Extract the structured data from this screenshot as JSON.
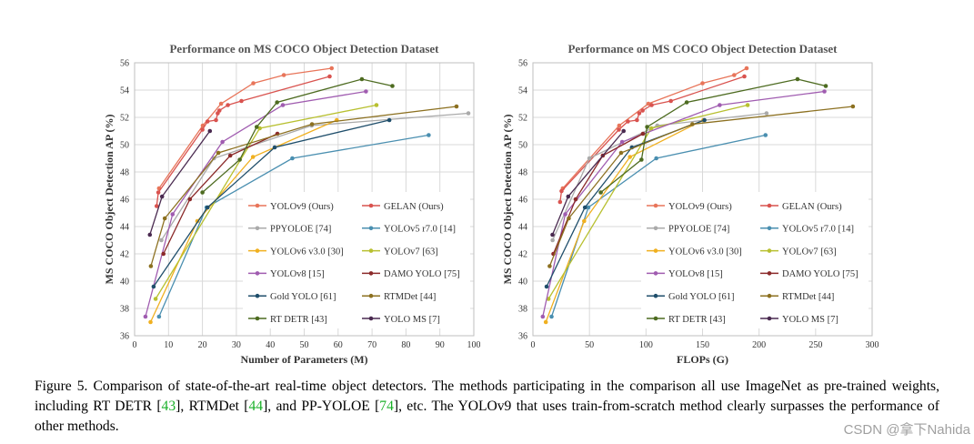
{
  "chart_data": [
    {
      "type": "line",
      "title": "Performance on MS COCO Object Detection Dataset",
      "xlabel": "Number of Parameters (M)",
      "ylabel": "MS COCO Object Detection AP (%)",
      "xlim": [
        0,
        100
      ],
      "ylim": [
        36,
        56
      ],
      "xticks": [
        0,
        10,
        20,
        30,
        40,
        50,
        60,
        70,
        80,
        90,
        100
      ],
      "yticks": [
        36,
        38,
        40,
        42,
        44,
        46,
        48,
        50,
        52,
        54,
        56
      ],
      "grid": true,
      "legend": "bottom-right",
      "series": [
        {
          "name": "YOLOv9 (Ours)",
          "color": "#e8755a",
          "points": [
            [
              7.2,
              46.8
            ],
            [
              20.1,
              51.4
            ],
            [
              25.5,
              53.0
            ],
            [
              35.0,
              54.5
            ],
            [
              44.0,
              55.1
            ],
            [
              58.1,
              55.6
            ]
          ]
        },
        {
          "name": "GELAN (Ours)",
          "color": "#d9534f",
          "points": [
            [
              6.5,
              45.5
            ],
            [
              7.0,
              46.5
            ],
            [
              20.0,
              51.1
            ],
            [
              21.5,
              51.7
            ],
            [
              24.0,
              51.8
            ],
            [
              24.5,
              52.3
            ],
            [
              25.0,
              52.5
            ],
            [
              27.5,
              52.9
            ],
            [
              31.5,
              53.2
            ],
            [
              57.5,
              55.0
            ]
          ]
        },
        {
          "name": "PPYOLOE [74]",
          "color": "#aaaaaa",
          "points": [
            [
              7.9,
              43.0
            ],
            [
              23.4,
              49.0
            ],
            [
              52.2,
              51.4
            ],
            [
              98.4,
              52.3
            ]
          ]
        },
        {
          "name": "YOLOv5 r7.0 [14]",
          "color": "#4a8fb0",
          "points": [
            [
              7.2,
              37.4
            ],
            [
              21.2,
              45.4
            ],
            [
              46.5,
              49.0
            ],
            [
              86.7,
              50.7
            ]
          ]
        },
        {
          "name": "YOLOv6 v3.0 [30]",
          "color": "#f0b020",
          "points": [
            [
              4.7,
              37.0
            ],
            [
              18.5,
              44.4
            ],
            [
              34.9,
              49.1
            ],
            [
              59.6,
              51.8
            ]
          ]
        },
        {
          "name": "YOLOv7 [63]",
          "color": "#b8c030",
          "points": [
            [
              6.2,
              38.7
            ],
            [
              36.9,
              51.2
            ],
            [
              71.3,
              52.9
            ]
          ]
        },
        {
          "name": "YOLOv8 [15]",
          "color": "#a05cb0",
          "points": [
            [
              3.2,
              37.4
            ],
            [
              11.2,
              44.9
            ],
            [
              25.9,
              50.2
            ],
            [
              43.7,
              52.9
            ],
            [
              68.2,
              53.9
            ]
          ]
        },
        {
          "name": "DAMO YOLO [75]",
          "color": "#8b2a2a",
          "points": [
            [
              8.5,
              42.0
            ],
            [
              16.3,
              46.0
            ],
            [
              28.2,
              49.2
            ],
            [
              42.1,
              50.8
            ]
          ]
        },
        {
          "name": "Gold YOLO [61]",
          "color": "#1f4e6b",
          "points": [
            [
              5.6,
              39.6
            ],
            [
              21.5,
              45.4
            ],
            [
              41.3,
              49.8
            ],
            [
              75.1,
              51.8
            ]
          ]
        },
        {
          "name": "RTMDet [44]",
          "color": "#8c7020",
          "points": [
            [
              4.8,
              41.1
            ],
            [
              8.9,
              44.6
            ],
            [
              24.7,
              49.4
            ],
            [
              52.3,
              51.5
            ],
            [
              94.9,
              52.8
            ]
          ]
        },
        {
          "name": "RT DETR [43]",
          "color": "#4d6b20",
          "points": [
            [
              20.0,
              46.5
            ],
            [
              31.0,
              48.9
            ],
            [
              36.0,
              51.3
            ],
            [
              42.0,
              53.1
            ],
            [
              67.0,
              54.8
            ],
            [
              76.0,
              54.3
            ]
          ]
        },
        {
          "name": "YOLO MS [7]",
          "color": "#4a2a50",
          "points": [
            [
              4.5,
              43.4
            ],
            [
              8.1,
              46.2
            ],
            [
              22.2,
              51.0
            ]
          ]
        }
      ]
    },
    {
      "type": "line",
      "title": "Performance on MS COCO Object Detection Dataset",
      "xlabel": "FLOPs (G)",
      "ylabel": "MS COCO Object Detection AP (%)",
      "xlim": [
        0,
        300
      ],
      "ylim": [
        36,
        56
      ],
      "xticks": [
        0,
        50,
        100,
        150,
        200,
        250,
        300
      ],
      "yticks": [
        36,
        38,
        40,
        42,
        44,
        46,
        48,
        50,
        52,
        54,
        56
      ],
      "grid": true,
      "legend": "bottom-right",
      "series": [
        {
          "name": "YOLOv9 (Ours)",
          "color": "#e8755a",
          "points": [
            [
              26.4,
              46.8
            ],
            [
              76.3,
              51.4
            ],
            [
              102.1,
              53.0
            ],
            [
              150.0,
              54.5
            ],
            [
              178.0,
              55.1
            ],
            [
              189.0,
              55.6
            ]
          ]
        },
        {
          "name": "GELAN (Ours)",
          "color": "#d9534f",
          "points": [
            [
              24.0,
              45.8
            ],
            [
              25.3,
              46.6
            ],
            [
              76.0,
              51.1
            ],
            [
              84.0,
              51.7
            ],
            [
              92.0,
              51.8
            ],
            [
              94.0,
              52.3
            ],
            [
              97.0,
              52.5
            ],
            [
              105.0,
              52.9
            ],
            [
              122.0,
              53.2
            ],
            [
              187.0,
              55.0
            ]
          ]
        },
        {
          "name": "PPYOLOE [74]",
          "color": "#aaaaaa",
          "points": [
            [
              17.4,
              43.0
            ],
            [
              49.9,
              49.0
            ],
            [
              110.0,
              51.4
            ],
            [
              206.6,
              52.3
            ]
          ]
        },
        {
          "name": "YOLOv5 r7.0 [14]",
          "color": "#4a8fb0",
          "points": [
            [
              16.5,
              37.4
            ],
            [
              49.0,
              45.4
            ],
            [
              109.1,
              49.0
            ],
            [
              205.7,
              50.7
            ]
          ]
        },
        {
          "name": "YOLOv6 v3.0 [30]",
          "color": "#f0b020",
          "points": [
            [
              11.4,
              37.0
            ],
            [
              45.3,
              44.4
            ],
            [
              85.8,
              49.1
            ],
            [
              150.7,
              51.8
            ]
          ]
        },
        {
          "name": "YOLOv7 [63]",
          "color": "#b8c030",
          "points": [
            [
              13.8,
              38.7
            ],
            [
              104.7,
              51.2
            ],
            [
              189.9,
              52.9
            ]
          ]
        },
        {
          "name": "YOLOv8 [15]",
          "color": "#a05cb0",
          "points": [
            [
              8.7,
              37.4
            ],
            [
              28.6,
              44.9
            ],
            [
              78.9,
              50.2
            ],
            [
              165.2,
              52.9
            ],
            [
              257.8,
              53.9
            ]
          ]
        },
        {
          "name": "DAMO YOLO [75]",
          "color": "#8b2a2a",
          "points": [
            [
              18.1,
              42.0
            ],
            [
              37.8,
              46.0
            ],
            [
              61.8,
              49.2
            ],
            [
              97.3,
              50.8
            ]
          ]
        },
        {
          "name": "Gold YOLO [61]",
          "color": "#1f4e6b",
          "points": [
            [
              12.1,
              39.6
            ],
            [
              46.0,
              45.4
            ],
            [
              87.5,
              49.8
            ],
            [
              151.7,
              51.8
            ]
          ]
        },
        {
          "name": "RTMDet [44]",
          "color": "#8c7020",
          "points": [
            [
              14.8,
              41.1
            ],
            [
              31.7,
              44.6
            ],
            [
              78.0,
              49.4
            ],
            [
              141.0,
              51.5
            ],
            [
              283.0,
              52.8
            ]
          ]
        },
        {
          "name": "RT DETR [43]",
          "color": "#4d6b20",
          "points": [
            [
              60.0,
              46.5
            ],
            [
              96.0,
              48.9
            ],
            [
              101.0,
              51.3
            ],
            [
              136.0,
              53.1
            ],
            [
              234.0,
              54.8
            ],
            [
              259.0,
              54.3
            ]
          ]
        },
        {
          "name": "YOLO MS [7]",
          "color": "#4a2a50",
          "points": [
            [
              17.3,
              43.4
            ],
            [
              31.2,
              46.2
            ],
            [
              80.2,
              51.0
            ]
          ]
        }
      ]
    }
  ],
  "caption": {
    "part1": "Figure 5.  Comparison of state-of-the-art real-time object detectors.  The methods participating in the comparison all use ImageNet as pre-trained weights, including RT DETR [",
    "ref1": "43",
    "part2": "], RTMDet [",
    "ref2": "44",
    "part3": "], and PP-YOLOE [",
    "ref3": "74",
    "part4": "], etc. The YOLOv9 that uses train-from-scratch method clearly surpasses the performance of other methods."
  },
  "watermark": "CSDN @拿下Nahida"
}
